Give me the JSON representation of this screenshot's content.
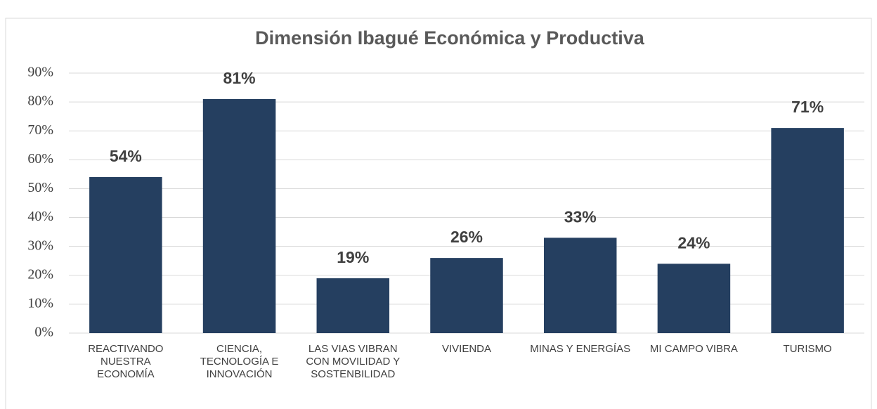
{
  "chart_data": {
    "type": "bar",
    "title": "Dimensión Ibagué Económica y Productiva",
    "categories": [
      "REACTIVANDO NUESTRA ECONOMÍA",
      "CIENCIA, TECNOLOGÍA E INNOVACIÓN",
      "LAS VIAS VIBRAN CON MOVILIDAD Y SOSTENBILIDAD",
      "VIVIENDA",
      "MINAS Y ENERGÍAS",
      "MI CAMPO VIBRA",
      "TURISMO"
    ],
    "values": [
      54,
      81,
      19,
      26,
      33,
      24,
      71
    ],
    "value_labels": [
      "54%",
      "81%",
      "19%",
      "26%",
      "33%",
      "24%",
      "71%"
    ],
    "color": "#253f60",
    "ylim": [
      0,
      90
    ],
    "yticks": [
      {
        "value": 0,
        "label": "0%"
      },
      {
        "value": 10,
        "label": "10%"
      },
      {
        "value": 20,
        "label": "20%"
      },
      {
        "value": 30,
        "label": "30%"
      },
      {
        "value": 40,
        "label": "40%"
      },
      {
        "value": 50,
        "label": "50%"
      },
      {
        "value": 60,
        "label": "60%"
      },
      {
        "value": 70,
        "label": "70%"
      },
      {
        "value": 80,
        "label": "80%"
      },
      {
        "value": 90,
        "label": "90%"
      }
    ],
    "grid": true
  }
}
